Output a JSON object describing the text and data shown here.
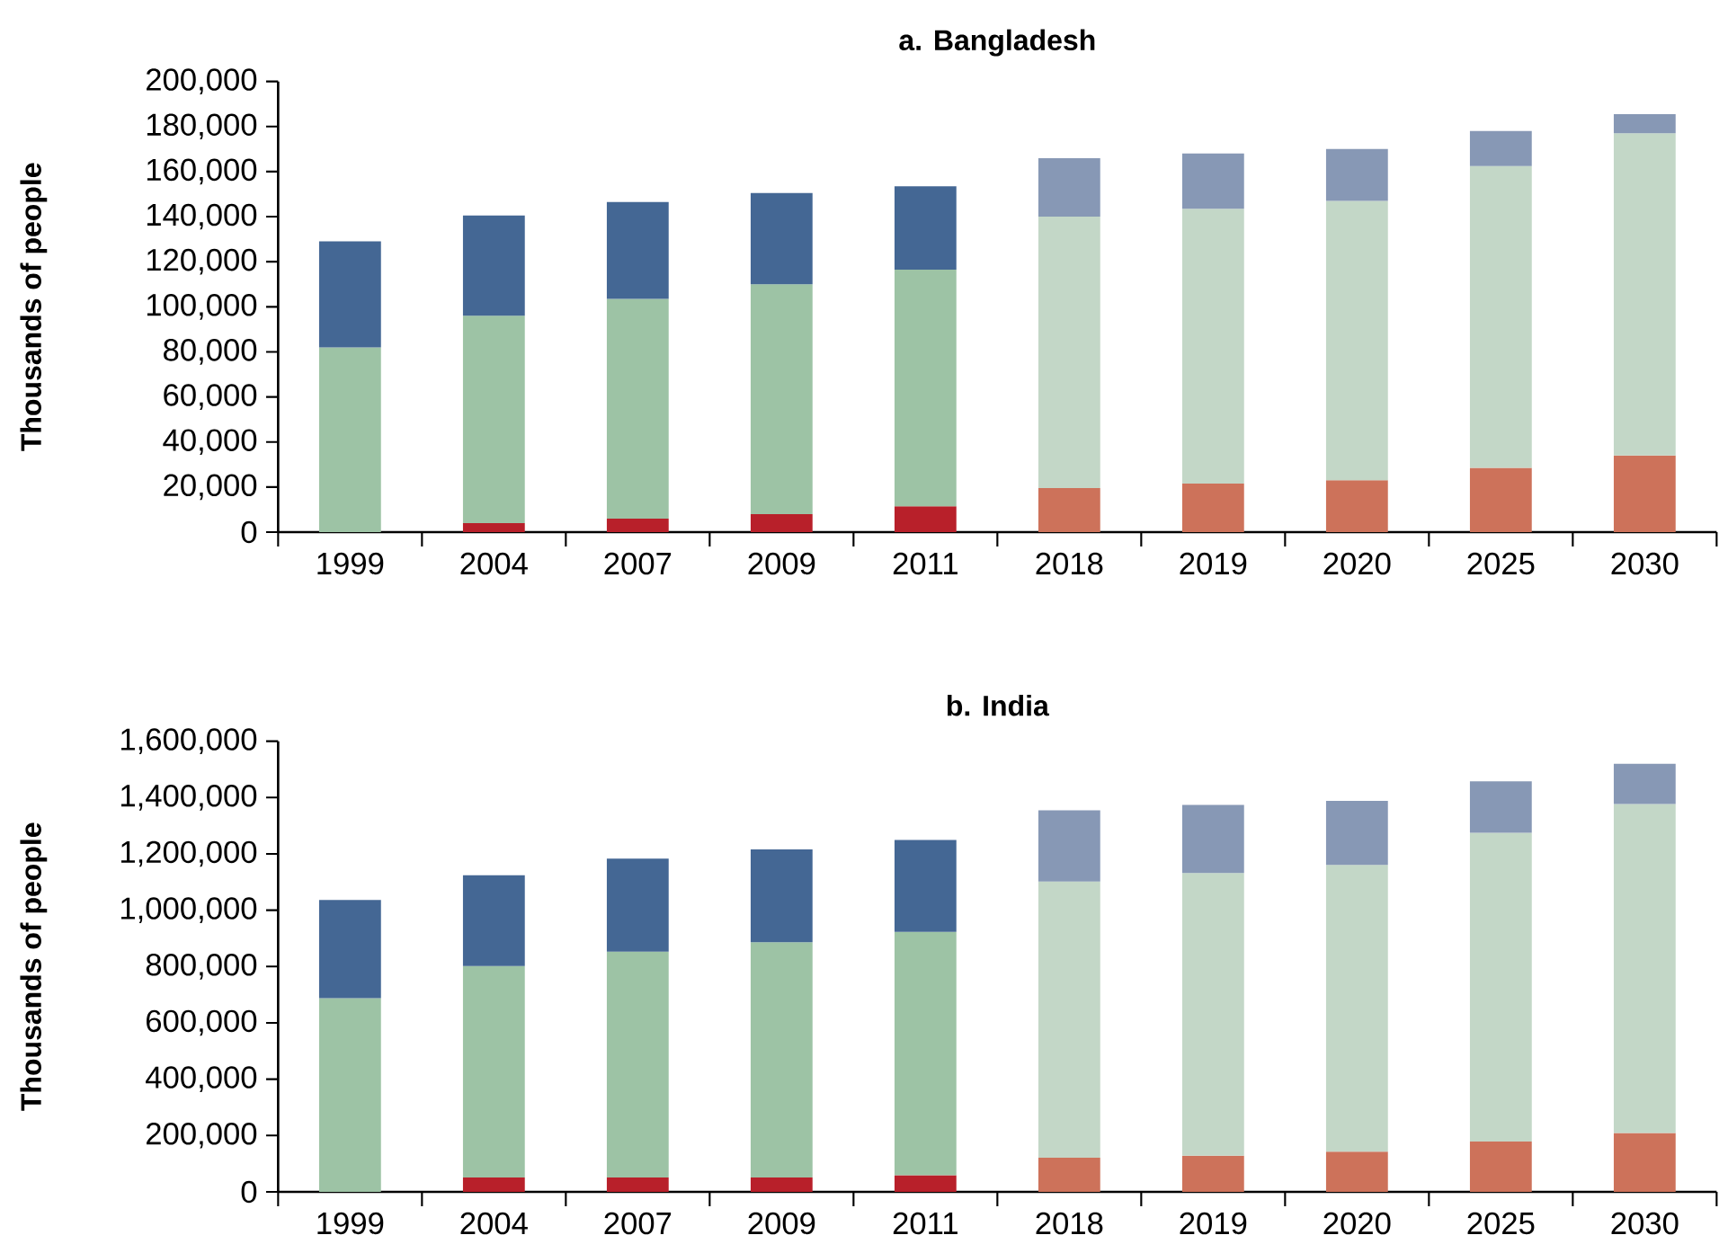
{
  "chart_data": [
    {
      "type": "bar",
      "title": "a. Bangladesh",
      "ylabel": "Thousands of people",
      "stacked": true,
      "categories": [
        "1999",
        "2004",
        "2007",
        "2009",
        "2011",
        "2018",
        "2019",
        "2020",
        "2025",
        "2030"
      ],
      "ylim": [
        0,
        200000
      ],
      "yticks": [
        0,
        {
          "value": 20000,
          "label": "20,000"
        },
        {
          "value": 40000,
          "label": "40,000"
        },
        {
          "value": 60000,
          "label": "60,000"
        },
        {
          "value": 80000,
          "label": "80,000"
        },
        {
          "value": 100000,
          "label": "100,000"
        },
        {
          "value": 120000,
          "label": "120,000"
        },
        {
          "value": 140000,
          "label": "140,000"
        },
        {
          "value": 160000,
          "label": "160,000"
        },
        {
          "value": 180000,
          "label": "180,000"
        },
        {
          "value": 200000,
          "label": "200,000"
        }
      ],
      "series": [
        {
          "values": [
            0,
            4000,
            6000,
            8000,
            11500,
            19500,
            21500,
            23000,
            28500,
            34000
          ],
          "colors": [
            "#b8202a",
            "#b8202a",
            "#b8202a",
            "#b8202a",
            "#b8202a",
            "#cd725a",
            "#cd725a",
            "#cd725a",
            "#cd725a",
            "#cd725a"
          ]
        },
        {
          "values": [
            82000,
            92000,
            97500,
            102000,
            105000,
            120500,
            122000,
            124000,
            134000,
            143000
          ],
          "colors": [
            "#9dc3a5",
            "#9dc3a5",
            "#9dc3a5",
            "#9dc3a5",
            "#9dc3a5",
            "#c3d7c7",
            "#c3d7c7",
            "#c3d7c7",
            "#c3d7c7",
            "#c3d7c7"
          ]
        },
        {
          "values": [
            47000,
            44500,
            43000,
            40500,
            37000,
            26000,
            24500,
            23000,
            15500,
            8500
          ],
          "colors": [
            "#446794",
            "#446794",
            "#446794",
            "#446794",
            "#446794",
            "#8798b5",
            "#8798b5",
            "#8798b5",
            "#8798b5",
            "#8798b5"
          ]
        }
      ]
    },
    {
      "type": "bar",
      "title": "b. India",
      "ylabel": "Thousands of people",
      "stacked": true,
      "categories": [
        "1999",
        "2004",
        "2007",
        "2009",
        "2011",
        "2018",
        "2019",
        "2020",
        "2025",
        "2030"
      ],
      "ylim": [
        0,
        1600000
      ],
      "yticks": [
        0,
        {
          "value": 200000,
          "label": "200,000"
        },
        {
          "value": 400000,
          "label": "400,000"
        },
        {
          "value": 600000,
          "label": "600,000"
        },
        {
          "value": 800000,
          "label": "800,000"
        },
        {
          "value": 1000000,
          "label": "1,000,000"
        },
        {
          "value": 1200000,
          "label": "1,200,000"
        },
        {
          "value": 1400000,
          "label": "1,400,000"
        },
        {
          "value": 1600000,
          "label": "1,600,000"
        }
      ],
      "series": [
        {
          "values": [
            0,
            51000,
            51000,
            51000,
            59000,
            121000,
            128000,
            143000,
            179000,
            209000
          ],
          "colors": [
            "#b8202a",
            "#b8202a",
            "#b8202a",
            "#b8202a",
            "#b8202a",
            "#cd725a",
            "#cd725a",
            "#cd725a",
            "#cd725a",
            "#cd725a"
          ]
        },
        {
          "values": [
            688000,
            751000,
            802000,
            835000,
            864000,
            981000,
            1004000,
            1018000,
            1096000,
            1168000
          ],
          "colors": [
            "#9dc3a5",
            "#9dc3a5",
            "#9dc3a5",
            "#9dc3a5",
            "#9dc3a5",
            "#c3d7c7",
            "#c3d7c7",
            "#c3d7c7",
            "#c3d7c7",
            "#c3d7c7"
          ]
        },
        {
          "values": [
            348000,
            322000,
            330000,
            330000,
            326000,
            253000,
            242000,
            227000,
            183000,
            143000
          ],
          "colors": [
            "#446794",
            "#446794",
            "#446794",
            "#446794",
            "#446794",
            "#8798b5",
            "#8798b5",
            "#8798b5",
            "#8798b5",
            "#8798b5"
          ]
        }
      ]
    }
  ]
}
